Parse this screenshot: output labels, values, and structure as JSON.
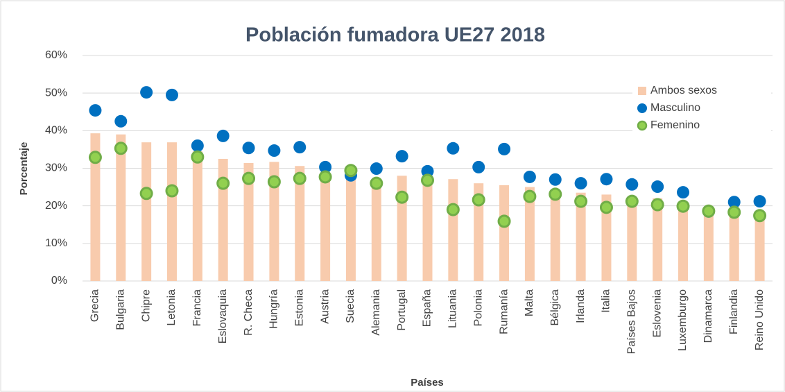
{
  "chart_data": {
    "type": "bar_dot",
    "title": "Población fumadora UE27 2018",
    "x_label": "Países",
    "y_label": "Porcentaje",
    "categories": [
      "Grecia",
      "Bulgaria",
      "Chipre",
      "Letonia",
      "Francia",
      "Eslovaquia",
      "R. Checa",
      "Hungría",
      "Estonia",
      "Austria",
      "Suecia",
      "Alemania",
      "Portugal",
      "España",
      "Lituania",
      "Polonia",
      "Rumanía",
      "Malta",
      "Bélgica",
      "Irlanda",
      "Italia",
      "Países Bajos",
      "Eslovenia",
      "Luxemburgo",
      "Dinamarca",
      "Finlandia",
      "Reino Unido"
    ],
    "series": [
      {
        "name": "Ambos sexos",
        "color": "#f8cbad",
        "mark": "bar",
        "values": [
          39.3,
          39.0,
          36.9,
          36.9,
          34.5,
          32.5,
          31.4,
          31.7,
          30.6,
          28.5,
          28.0,
          27.0,
          28.0,
          27.0,
          27.1,
          26.0,
          25.5,
          25.0,
          24.0,
          23.5,
          23.0,
          22.0,
          22.0,
          21.0,
          18.5,
          19.0,
          17.0
        ]
      },
      {
        "name": "Masculino",
        "color": "#0070c0",
        "mark": "dot",
        "values": [
          45.4,
          42.5,
          50.2,
          49.5,
          36.0,
          38.6,
          35.4,
          34.7,
          35.6,
          30.3,
          28.1,
          29.9,
          33.2,
          29.2,
          35.3,
          30.3,
          35.1,
          27.7,
          27.0,
          26.0,
          27.1,
          25.7,
          25.1,
          23.6,
          18.5,
          21.0,
          21.2
        ]
      },
      {
        "name": "Femenino",
        "color": "#92d050",
        "mark": "dot",
        "values": [
          32.9,
          35.3,
          23.3,
          24.0,
          33.0,
          26.0,
          27.3,
          26.4,
          27.3,
          27.7,
          29.4,
          26.0,
          22.3,
          26.8,
          19.0,
          21.6,
          15.9,
          22.5,
          23.1,
          21.2,
          19.6,
          21.2,
          20.3,
          19.9,
          18.6,
          18.3,
          17.4
        ]
      }
    ],
    "ylim": [
      0,
      60
    ],
    "yticks": [
      {
        "value": 0,
        "label": "0%"
      },
      {
        "value": 10,
        "label": "10%"
      },
      {
        "value": 20,
        "label": "20%"
      },
      {
        "value": 30,
        "label": "30%"
      },
      {
        "value": 40,
        "label": "40%"
      },
      {
        "value": 50,
        "label": "50%"
      },
      {
        "value": 60,
        "label": "60%"
      }
    ],
    "grid": true,
    "legend": "top-right"
  }
}
